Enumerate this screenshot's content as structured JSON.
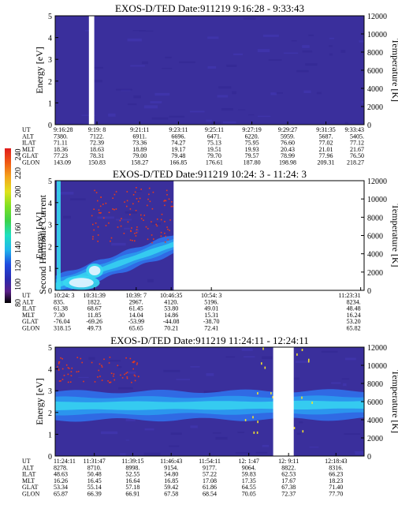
{
  "colors": {
    "background": "#3a2f9c",
    "band_blue": "#2f6ee8",
    "band_core": "#2aa0f0",
    "band_cyan": "#38d8f0",
    "hot_white": "#e8f4ff",
    "red_dot": "#e83a1a",
    "yellow_dot": "#f0e030",
    "gap": "#ffffff"
  },
  "colorbar": {
    "label": "Second Harmonic Current",
    "ticks": [
      "240",
      "220",
      "200",
      "180",
      "160",
      "140",
      "120",
      "100",
      "80"
    ],
    "stops": [
      {
        "v": 80,
        "c": "#000000"
      },
      {
        "v": 92,
        "c": "#5a1e88"
      },
      {
        "v": 105,
        "c": "#2a2ab0"
      },
      {
        "v": 120,
        "c": "#1e4be0"
      },
      {
        "v": 135,
        "c": "#1fb6ec"
      },
      {
        "v": 150,
        "c": "#1ee0c0"
      },
      {
        "v": 165,
        "c": "#3cd24a"
      },
      {
        "v": 180,
        "c": "#7ee022"
      },
      {
        "v": 195,
        "c": "#e0e21c"
      },
      {
        "v": 210,
        "c": "#f4a61c"
      },
      {
        "v": 225,
        "c": "#f05a14"
      },
      {
        "v": 240,
        "c": "#e01c1c"
      }
    ]
  },
  "row_labels": [
    "UT",
    "ALT",
    "ILAT",
    "MLT",
    "GLAT",
    "GLON"
  ],
  "chart_data": [
    {
      "type": "heatmap",
      "title": "EXOS-D/TED   Date:911219  9:16:28 - 9:33:43",
      "ylabel": "Energy [eV]",
      "y2label": "Temperature [K]",
      "ylim": [
        0,
        5
      ],
      "y_ticks": [
        "0",
        "1",
        "2",
        "3",
        "4",
        "5"
      ],
      "y2lim": [
        0,
        12000
      ],
      "y2_ticks": [
        "0",
        "2000",
        "4000",
        "6000",
        "8000",
        "10000",
        "12000"
      ],
      "x_range": [
        0,
        1035
      ],
      "gaps": [
        [
          113,
          131
        ]
      ],
      "band": null,
      "dots": [],
      "ephemeris": [
        {
          "x": 0,
          "values": [
            "9:16:28",
            "7380.",
            "71.11",
            "18.36",
            "77.23",
            "143.09"
          ]
        },
        {
          "x": 140,
          "values": [
            "9:19: 8",
            "7122.",
            "72.39",
            "18.63",
            "78.31",
            "150.83"
          ]
        },
        {
          "x": 283,
          "values": [
            "9:21:11",
            "6911.",
            "73.36",
            "18.89",
            "79.00",
            "158.27"
          ]
        },
        {
          "x": 413,
          "values": [
            "9:23:11",
            "6696.",
            "74.27",
            "19.17",
            "79.48",
            "166.85"
          ]
        },
        {
          "x": 533,
          "values": [
            "9:25:11",
            "6471.",
            "75.13",
            "19.51",
            "79.70",
            "176.61"
          ]
        },
        {
          "x": 659,
          "values": [
            "9:27:19",
            "6220.",
            "75.95",
            "19.93",
            "79.57",
            "187.80"
          ]
        },
        {
          "x": 779,
          "values": [
            "9:29:27",
            "5959.",
            "76.60",
            "20.43",
            "78.99",
            "198.98"
          ]
        },
        {
          "x": 907,
          "values": [
            "9:31:35",
            "5687.",
            "77.02",
            "21.01",
            "77.96",
            "209.31"
          ]
        },
        {
          "x": 1035,
          "values": [
            "9:33:43",
            "5405.",
            "77.12",
            "21.67",
            "76.50",
            "218.27"
          ]
        }
      ]
    },
    {
      "type": "heatmap",
      "title": "EXOS-D/TED   Date:911219  10:24: 3 - 11:24: 3",
      "ylabel": "Energy [eV]",
      "y2label": "Temperature [K]",
      "ylim": [
        0,
        5
      ],
      "y_ticks": [
        "0",
        "1",
        "2",
        "3",
        "4",
        "5"
      ],
      "y2lim": [
        0,
        12000
      ],
      "y2_ticks": [
        "0",
        "2000",
        "4000",
        "6000",
        "8000",
        "10000",
        "12000"
      ],
      "x_range": [
        0,
        3600
      ],
      "gaps": [
        [
          1380,
          3600
        ]
      ],
      "band": {
        "start": 0,
        "end": 1380,
        "e_start": 0.2,
        "e_end": 2.1,
        "width": 0.9,
        "hot": [
          [
            90,
            520,
            0.35
          ],
          [
            360,
            560,
            0.9
          ]
        ]
      },
      "dots": [
        {
          "x0": 420,
          "x1": 1380,
          "e0": 2.2,
          "e1": 4.8,
          "n": 110,
          "color": "red"
        }
      ],
      "ephemeris": [
        {
          "x": 0,
          "values": [
            "10:24: 3",
            "835.",
            "61.38",
            "7.30",
            "-76.04",
            "318.15"
          ]
        },
        {
          "x": 456,
          "values": [
            "10:31:39",
            "1822.",
            "68.67",
            "11.85",
            "-69.26",
            "49.73"
          ]
        },
        {
          "x": 944,
          "values": [
            "10:39: 7",
            "2967.",
            "61.45",
            "14.04",
            "-53.99",
            "65.65"
          ]
        },
        {
          "x": 1352,
          "values": [
            "10:46:35",
            "4120.",
            "53.80",
            "14.86",
            "-44.08",
            "70.21"
          ]
        },
        {
          "x": 1820,
          "values": [
            "10:54: 3",
            "5196.",
            "49.01",
            "15.31",
            "-38.70",
            "72.41"
          ]
        },
        {
          "x": 3560,
          "values": [
            "11:23:31",
            "8234.",
            "48.48",
            "16.24",
            "53.20",
            "65.82"
          ]
        }
      ]
    },
    {
      "type": "heatmap",
      "title": "EXOS-D/TED   Date:911219  11:24:11 - 12:24:11",
      "ylabel": "Energy [eV]",
      "y2label": "Temperature [K]",
      "ylim": [
        0,
        5
      ],
      "y_ticks": [
        "0",
        "1",
        "2",
        "3",
        "4",
        "5"
      ],
      "y2lim": [
        0,
        12000
      ],
      "y2_ticks": [
        "0",
        "2000",
        "4000",
        "6000",
        "8000",
        "10000",
        "12000"
      ],
      "x_range": [
        0,
        3600
      ],
      "gaps": [
        [
          2540,
          2780
        ]
      ],
      "band": {
        "start": 0,
        "end": 3600,
        "e_start": 2.3,
        "e_end": 2.35,
        "width": 1.3,
        "hot": []
      },
      "dots": [
        {
          "x0": 0,
          "x1": 1000,
          "e0": 3.4,
          "e1": 4.6,
          "n": 70,
          "color": "red"
        },
        {
          "x0": 2200,
          "x1": 3000,
          "e0": 1.0,
          "e1": 5.0,
          "n": 24,
          "color": "yellow"
        }
      ],
      "ephemeris": [
        {
          "x": 0,
          "values": [
            "11:24:11",
            "8278.",
            "48.63",
            "16.26",
            "53.34",
            "65.87"
          ]
        },
        {
          "x": 456,
          "values": [
            "11:31:47",
            "8710.",
            "50.48",
            "16.45",
            "55.14",
            "66.39"
          ]
        },
        {
          "x": 904,
          "values": [
            "11:39:15",
            "8998.",
            "52.55",
            "16.64",
            "57.18",
            "66.91"
          ]
        },
        {
          "x": 1352,
          "values": [
            "11:46:43",
            "9154.",
            "54.80",
            "16.85",
            "59.42",
            "67.58"
          ]
        },
        {
          "x": 1800,
          "values": [
            "11:54:11",
            "9177.",
            "57.22",
            "17.08",
            "61.86",
            "68.54"
          ]
        },
        {
          "x": 2256,
          "values": [
            "12: 1:47",
            "9064.",
            "59.83",
            "17.35",
            "64.55",
            "70.05"
          ]
        },
        {
          "x": 2720,
          "values": [
            "12: 9:11",
            "8822.",
            "62.53",
            "17.67",
            "67.38",
            "72.37"
          ]
        },
        {
          "x": 3272,
          "values": [
            "12:18:43",
            "8316.",
            "66.23",
            "18.23",
            "71.40",
            "77.70"
          ]
        }
      ]
    }
  ]
}
